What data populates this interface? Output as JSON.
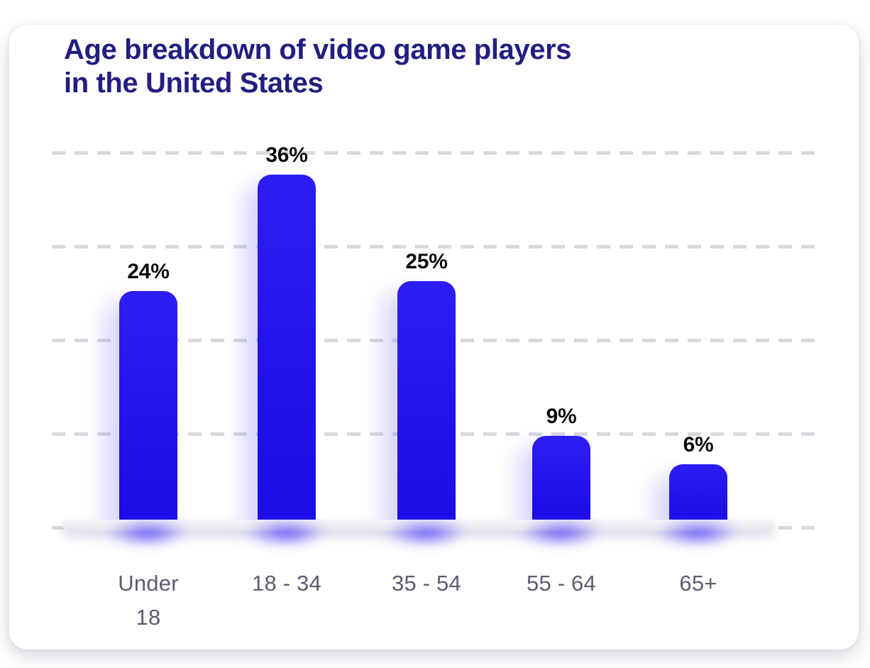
{
  "chart": {
    "title_lines": [
      "Age breakdown of video game players",
      "in the United States"
    ]
  },
  "chart_data": {
    "type": "bar",
    "title": "Age breakdown of video game players in the United States",
    "categories": [
      "Under 18",
      "18 - 34",
      "35 - 54",
      "55 - 64",
      "65+"
    ],
    "values": [
      24,
      36,
      25,
      9,
      6
    ],
    "value_labels": [
      "24%",
      "36%",
      "25%",
      "9%",
      "6%"
    ],
    "unit": "percent",
    "xlabel": "",
    "ylabel": "",
    "ylim": [
      0,
      40
    ],
    "grid": "horizontal-dashed-gridlines",
    "legend": "none",
    "colors": {
      "bar": "#1d0cf1",
      "title": "#221e80",
      "value_label": "#0c0c0c",
      "tick_label": "#5e5b71",
      "gridline": "#d8d8df",
      "baseline_floor": "#e9e9f1",
      "glow": "#4632fa"
    }
  }
}
